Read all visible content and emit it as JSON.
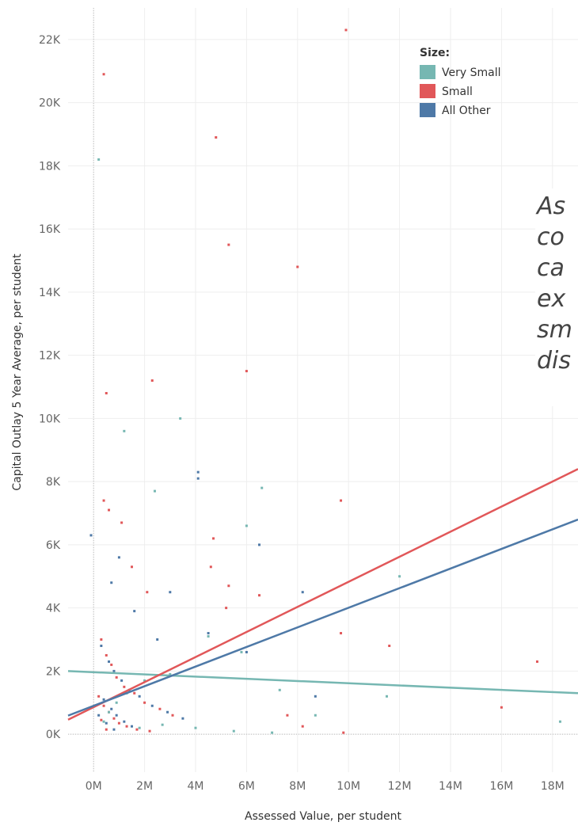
{
  "chart_data": {
    "type": "scatter",
    "xlabel": "Assessed Value, per student",
    "ylabel": "Capital Outlay 5 Year Average, per student",
    "x_ticks": [
      "0M",
      "2M",
      "4M",
      "6M",
      "8M",
      "10M",
      "12M",
      "14M",
      "16M",
      "18M"
    ],
    "y_ticks": [
      "0K",
      "2K",
      "4K",
      "6K",
      "8K",
      "10K",
      "12K",
      "14K",
      "16K",
      "18K",
      "20K",
      "22K"
    ],
    "xlim": [
      -1000000,
      19000000
    ],
    "ylim": [
      -1200,
      23000
    ],
    "grid": true,
    "legend": {
      "title": "Size:",
      "placement": "top-center",
      "entries": [
        {
          "label": "Very Small",
          "color": "#76b7b2"
        },
        {
          "label": "Small",
          "color": "#e15759"
        },
        {
          "label": "All Other",
          "color": "#4e79a7"
        }
      ]
    },
    "annotation": {
      "lines": [
        "As",
        "co",
        "ca",
        "ex",
        "sm",
        "dis"
      ]
    },
    "trend_lines": [
      {
        "series": "Very Small",
        "color": "#76b7b2",
        "x": [
          -1000000,
          19000000
        ],
        "y": [
          2000,
          1300
        ]
      },
      {
        "series": "Small",
        "color": "#e15759",
        "x": [
          -1000000,
          19000000
        ],
        "y": [
          460,
          8400
        ]
      },
      {
        "series": "All Other",
        "color": "#4e79a7",
        "x": [
          -1000000,
          19000000
        ],
        "y": [
          590,
          6800
        ]
      }
    ],
    "series": [
      {
        "name": "Small",
        "color": "#e15759",
        "points": [
          [
            400000,
            20900
          ],
          [
            9900000,
            22300
          ],
          [
            4800000,
            18900
          ],
          [
            5300000,
            15500
          ],
          [
            8000000,
            14800
          ],
          [
            2300000,
            11200
          ],
          [
            6000000,
            11500
          ],
          [
            500000,
            10800
          ],
          [
            9700000,
            7400
          ],
          [
            400000,
            7400
          ],
          [
            600000,
            7100
          ],
          [
            1100000,
            6700
          ],
          [
            4700000,
            6200
          ],
          [
            4600000,
            5300
          ],
          [
            1500000,
            5300
          ],
          [
            5300000,
            4700
          ],
          [
            6500000,
            4400
          ],
          [
            2100000,
            4500
          ],
          [
            5200000,
            4000
          ],
          [
            9700000,
            3200
          ],
          [
            11600000,
            2800
          ],
          [
            17400000,
            2300
          ],
          [
            16000000,
            850
          ],
          [
            7600000,
            600
          ],
          [
            8200000,
            250
          ],
          [
            9800000,
            50
          ],
          [
            300000,
            3000
          ],
          [
            500000,
            2500
          ],
          [
            700000,
            2200
          ],
          [
            900000,
            1800
          ],
          [
            1200000,
            1500
          ],
          [
            1600000,
            1300
          ],
          [
            2000000,
            1000
          ],
          [
            2600000,
            800
          ],
          [
            3100000,
            600
          ],
          [
            200000,
            1200
          ],
          [
            400000,
            900
          ],
          [
            600000,
            700
          ],
          [
            800000,
            500
          ],
          [
            1000000,
            350
          ],
          [
            1300000,
            250
          ],
          [
            1700000,
            150
          ],
          [
            2200000,
            100
          ],
          [
            300000,
            450
          ],
          [
            500000,
            150
          ]
        ]
      },
      {
        "name": "All Other",
        "color": "#4e79a7",
        "points": [
          [
            4100000,
            8300
          ],
          [
            4100000,
            8100
          ],
          [
            -100000,
            6300
          ],
          [
            6500000,
            6000
          ],
          [
            1000000,
            5600
          ],
          [
            700000,
            4800
          ],
          [
            8200000,
            4500
          ],
          [
            3000000,
            4500
          ],
          [
            1600000,
            3900
          ],
          [
            4500000,
            3200
          ],
          [
            2500000,
            3000
          ],
          [
            6000000,
            2600
          ],
          [
            8700000,
            1200
          ],
          [
            300000,
            2800
          ],
          [
            600000,
            2300
          ],
          [
            800000,
            2000
          ],
          [
            1100000,
            1700
          ],
          [
            1400000,
            1400
          ],
          [
            1800000,
            1200
          ],
          [
            2300000,
            900
          ],
          [
            2900000,
            700
          ],
          [
            3500000,
            500
          ],
          [
            400000,
            1100
          ],
          [
            700000,
            800
          ],
          [
            900000,
            600
          ],
          [
            1200000,
            400
          ],
          [
            1500000,
            250
          ],
          [
            200000,
            600
          ],
          [
            500000,
            350
          ],
          [
            800000,
            150
          ]
        ]
      },
      {
        "name": "Very Small",
        "color": "#76b7b2",
        "points": [
          [
            200000,
            18200
          ],
          [
            3400000,
            10000
          ],
          [
            1200000,
            9600
          ],
          [
            2400000,
            7700
          ],
          [
            6600000,
            7800
          ],
          [
            6000000,
            6600
          ],
          [
            12000000,
            5000
          ],
          [
            4500000,
            3100
          ],
          [
            5800000,
            2600
          ],
          [
            7300000,
            1400
          ],
          [
            8700000,
            600
          ],
          [
            11500000,
            1200
          ],
          [
            18300000,
            400
          ],
          [
            3000000,
            1900
          ],
          [
            2000000,
            1700
          ],
          [
            1300000,
            1300
          ],
          [
            900000,
            1000
          ],
          [
            600000,
            700
          ],
          [
            400000,
            400
          ],
          [
            2700000,
            300
          ],
          [
            4000000,
            200
          ],
          [
            5500000,
            100
          ],
          [
            7000000,
            50
          ],
          [
            1800000,
            200
          ]
        ]
      }
    ]
  }
}
